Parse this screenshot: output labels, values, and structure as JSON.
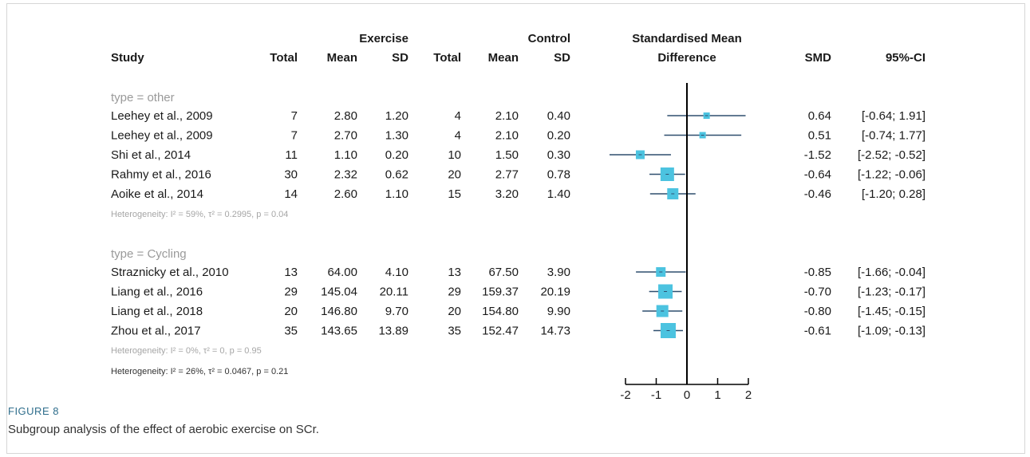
{
  "colors": {
    "box": "#4cc3e0",
    "ci": "#2f4f6f",
    "heterogeneity": "#a6a6a6",
    "subgroup": "#9a9a9a",
    "text": "#1a1a1a"
  },
  "header": {
    "exercise": "Exercise",
    "control": "Control",
    "smd_top": "Standardised Mean",
    "smd_bottom": "Difference",
    "study": "Study",
    "total_ex": "Total",
    "mean_ex": "Mean",
    "sd_ex": "SD",
    "total_ctrl": "Total",
    "mean_ctrl": "Mean",
    "sd_ctrl": "SD",
    "smd": "SMD",
    "ci": "95%-CI"
  },
  "chart_data": {
    "type": "forest",
    "xlim": [
      -2,
      2
    ],
    "x_ticks": [
      "-2",
      "-1",
      "0",
      "1",
      "2"
    ],
    "reference_line": 0,
    "groups": [
      {
        "label": "type = other",
        "rows": [
          {
            "study": "Leehey et al., 2009",
            "ex_total": "7",
            "ex_mean": "2.80",
            "ex_sd": "1.20",
            "ctrl_total": "4",
            "ctrl_mean": "2.10",
            "ctrl_sd": "0.40",
            "smd": 0.64,
            "lo": -0.64,
            "hi": 1.91,
            "smd_text": "0.64",
            "ci_text": "[-0.64; 1.91]",
            "box": 8
          },
          {
            "study": "Leehey et al., 2009",
            "ex_total": "7",
            "ex_mean": "2.70",
            "ex_sd": "1.30",
            "ctrl_total": "4",
            "ctrl_mean": "2.10",
            "ctrl_sd": "0.20",
            "smd": 0.51,
            "lo": -0.74,
            "hi": 1.77,
            "smd_text": "0.51",
            "ci_text": "[-0.74; 1.77]",
            "box": 8
          },
          {
            "study": "Shi et al., 2014",
            "ex_total": "11",
            "ex_mean": "1.10",
            "ex_sd": "0.20",
            "ctrl_total": "10",
            "ctrl_mean": "1.50",
            "ctrl_sd": "0.30",
            "smd": -1.52,
            "lo": -2.52,
            "hi": -0.52,
            "smd_text": "-1.52",
            "ci_text": "[-2.52; -0.52]",
            "box": 11
          },
          {
            "study": "Rahmy et al., 2016",
            "ex_total": "30",
            "ex_mean": "2.32",
            "ex_sd": "0.62",
            "ctrl_total": "20",
            "ctrl_mean": "2.77",
            "ctrl_sd": "0.78",
            "smd": -0.64,
            "lo": -1.22,
            "hi": -0.06,
            "smd_text": "-0.64",
            "ci_text": "[-1.22; -0.06]",
            "box": 17
          },
          {
            "study": "Aoike et al., 2014",
            "ex_total": "14",
            "ex_mean": "2.60",
            "ex_sd": "1.10",
            "ctrl_total": "15",
            "ctrl_mean": "3.20",
            "ctrl_sd": "1.40",
            "smd": -0.46,
            "lo": -1.2,
            "hi": 0.28,
            "smd_text": "-0.46",
            "ci_text": "[-1.20; 0.28]",
            "box": 14
          }
        ],
        "heterogeneity": "Heterogeneity: I² = 59%, τ² = 0.2995, p = 0.04"
      },
      {
        "label": "type = Cycling",
        "rows": [
          {
            "study": "Straznicky et al., 2010",
            "ex_total": "13",
            "ex_mean": "64.00",
            "ex_sd": "4.10",
            "ctrl_total": "13",
            "ctrl_mean": "67.50",
            "ctrl_sd": "3.90",
            "smd": -0.85,
            "lo": -1.66,
            "hi": -0.04,
            "smd_text": "-0.85",
            "ci_text": "[-1.66; -0.04]",
            "box": 12
          },
          {
            "study": "Liang et al., 2016",
            "ex_total": "29",
            "ex_mean": "145.04",
            "ex_sd": "20.11",
            "ctrl_total": "29",
            "ctrl_mean": "159.37",
            "ctrl_sd": "20.19",
            "smd": -0.7,
            "lo": -1.23,
            "hi": -0.17,
            "smd_text": "-0.70",
            "ci_text": "[-1.23; -0.17]",
            "box": 18
          },
          {
            "study": "Liang et al., 2018",
            "ex_total": "20",
            "ex_mean": "146.80",
            "ex_sd": "9.70",
            "ctrl_total": "20",
            "ctrl_mean": "154.80",
            "ctrl_sd": "9.90",
            "smd": -0.8,
            "lo": -1.45,
            "hi": -0.15,
            "smd_text": "-0.80",
            "ci_text": "[-1.45; -0.15]",
            "box": 15
          },
          {
            "study": "Zhou et al., 2017",
            "ex_total": "35",
            "ex_mean": "143.65",
            "ex_sd": "13.89",
            "ctrl_total": "35",
            "ctrl_mean": "152.47",
            "ctrl_sd": "14.73",
            "smd": -0.61,
            "lo": -1.09,
            "hi": -0.13,
            "smd_text": "-0.61",
            "ci_text": "[-1.09; -0.13]",
            "box": 19
          }
        ],
        "heterogeneity": "Heterogeneity: I² = 0%, τ² = 0, p = 0.95"
      }
    ],
    "overall_heterogeneity": "Heterogeneity: I² = 26%, τ² = 0.0467, p = 0.21"
  },
  "caption": {
    "label": "FIGURE 8",
    "text": "Subgroup analysis of the effect of aerobic exercise on SCr."
  }
}
